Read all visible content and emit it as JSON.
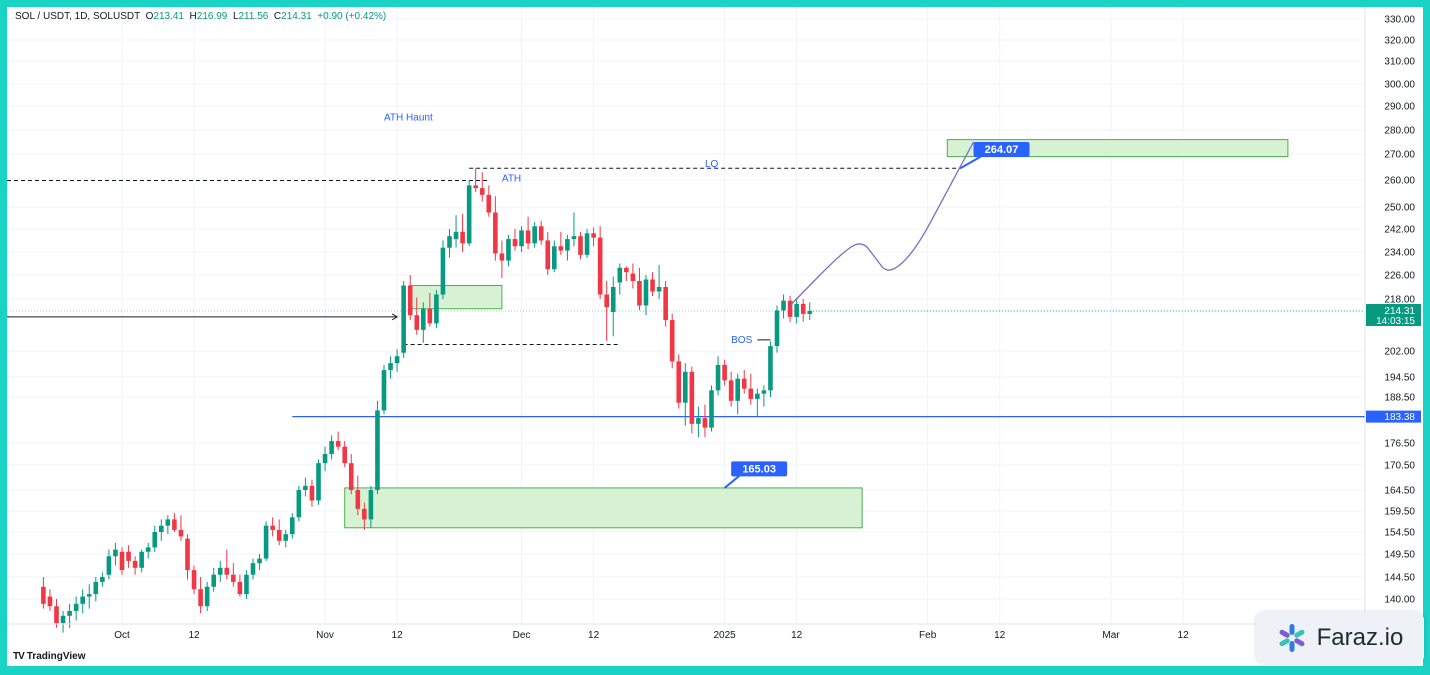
{
  "legend": {
    "symbol": "SOL / USDT, 1D, SOLUSDT",
    "o_label": "O",
    "o": "213.41",
    "h_label": "H",
    "h": "216.99",
    "l_label": "L",
    "l": "211.56",
    "c_label": "C",
    "c": "214.31",
    "change": "+0.90 (+0.42%)"
  },
  "branding": {
    "tradingview": "TradingView",
    "watermark": "Faraz.io",
    "watermark_icon": "star-burst-icon"
  },
  "colors": {
    "up": "#089981",
    "down": "#f23645",
    "zone_fill": "#d7f2d2",
    "zone_border": "#4caf50",
    "accent": "#2962ff",
    "projection": "#7e6bc4"
  },
  "chart_data": {
    "type": "candlestick",
    "title": "SOL / USDT, 1D, SOLUSDT",
    "y_ticks": [
      "330.00",
      "320.00",
      "310.00",
      "300.00",
      "290.00",
      "280.00",
      "270.00",
      "260.00",
      "250.00",
      "242.00",
      "234.00",
      "226.00",
      "218.00",
      "202.00",
      "194.50",
      "188.50",
      "176.50",
      "170.50",
      "164.50",
      "159.50",
      "154.50",
      "149.50",
      "144.50",
      "140.00"
    ],
    "x_ticks": [
      "Oct",
      "12",
      "Nov",
      "12",
      "Dec",
      "12",
      "2025",
      "12",
      "Feb",
      "12",
      "Mar",
      "12"
    ],
    "last_price": "214.31",
    "countdown": "14:03:15",
    "support_level": "183.38",
    "annotations": {
      "ath_haunt": "ATH Haunt",
      "ath": "ATH",
      "lq": "LQ",
      "bos": "BOS",
      "target_upper": "264.07",
      "target_lower": "165.03"
    },
    "levels": {
      "ath": 264.5,
      "prev_high": 259.8,
      "bos": 204,
      "entry_arrow": 212.5
    },
    "zones": [
      {
        "name": "upper-target-zone",
        "from": "2025-02-04",
        "to": "2025-03-28",
        "low": 269,
        "high": 276
      },
      {
        "name": "mid-zone",
        "from": "2024-11-14",
        "to": "2024-11-28",
        "low": 215,
        "high": 222.5
      },
      {
        "name": "lower-demand-zone",
        "from": "2024-11-04",
        "to": "2025-01-22",
        "low": 155.5,
        "high": 165
      }
    ],
    "projection": [
      {
        "date": "2025-01-11",
        "price": 216
      },
      {
        "date": "2025-01-19",
        "price": 234
      },
      {
        "date": "2025-01-22",
        "price": 238
      },
      {
        "date": "2025-01-24",
        "price": 232
      },
      {
        "date": "2025-01-26",
        "price": 226
      },
      {
        "date": "2025-01-30",
        "price": 234
      },
      {
        "date": "2025-02-04",
        "price": 256
      },
      {
        "date": "2025-02-08",
        "price": 275
      }
    ],
    "candles": [
      {
        "date": "2024-09-19",
        "o": 142.5,
        "h": 144.5,
        "l": 138,
        "c": 139
      },
      {
        "date": "2024-09-20",
        "o": 140.5,
        "h": 142,
        "l": 137.5,
        "c": 138.5
      },
      {
        "date": "2024-09-21",
        "o": 138.5,
        "h": 140,
        "l": 134,
        "c": 135
      },
      {
        "date": "2024-09-22",
        "o": 135,
        "h": 137.5,
        "l": 133,
        "c": 136.5
      },
      {
        "date": "2024-09-23",
        "o": 136.5,
        "h": 139,
        "l": 134,
        "c": 137.5
      },
      {
        "date": "2024-09-24",
        "o": 137.5,
        "h": 140.5,
        "l": 135.5,
        "c": 139
      },
      {
        "date": "2024-09-25",
        "o": 139,
        "h": 142,
        "l": 137,
        "c": 140.5
      },
      {
        "date": "2024-09-26",
        "o": 140.5,
        "h": 143,
        "l": 138,
        "c": 141
      },
      {
        "date": "2024-09-27",
        "o": 141,
        "h": 144.5,
        "l": 139.5,
        "c": 143.5
      },
      {
        "date": "2024-09-28",
        "o": 143.5,
        "h": 145.5,
        "l": 142.5,
        "c": 144.5
      },
      {
        "date": "2024-09-29",
        "o": 145,
        "h": 150.5,
        "l": 144,
        "c": 149
      },
      {
        "date": "2024-09-30",
        "o": 149,
        "h": 152,
        "l": 147,
        "c": 150.5
      },
      {
        "date": "2024-10-01",
        "o": 150,
        "h": 151,
        "l": 145,
        "c": 146
      },
      {
        "date": "2024-10-02",
        "o": 150,
        "h": 151.5,
        "l": 146.5,
        "c": 148
      },
      {
        "date": "2024-10-03",
        "o": 148,
        "h": 149,
        "l": 145,
        "c": 146.5
      },
      {
        "date": "2024-10-04",
        "o": 146.5,
        "h": 150.5,
        "l": 145.5,
        "c": 150
      },
      {
        "date": "2024-10-05",
        "o": 150,
        "h": 152,
        "l": 148.5,
        "c": 151
      },
      {
        "date": "2024-10-06",
        "o": 151,
        "h": 156,
        "l": 150,
        "c": 154.5
      },
      {
        "date": "2024-10-07",
        "o": 154.5,
        "h": 157.5,
        "l": 152.5,
        "c": 156
      },
      {
        "date": "2024-10-08",
        "o": 156,
        "h": 158.5,
        "l": 154,
        "c": 157.5
      },
      {
        "date": "2024-10-09",
        "o": 157.5,
        "h": 159,
        "l": 154.5,
        "c": 155
      },
      {
        "date": "2024-10-10",
        "o": 155,
        "h": 158.5,
        "l": 152.5,
        "c": 153.5
      },
      {
        "date": "2024-10-11",
        "o": 153,
        "h": 154,
        "l": 144,
        "c": 146
      },
      {
        "date": "2024-10-12",
        "o": 146,
        "h": 147,
        "l": 141,
        "c": 142
      },
      {
        "date": "2024-10-13",
        "o": 142,
        "h": 144.5,
        "l": 137,
        "c": 138.5
      },
      {
        "date": "2024-10-14",
        "o": 138.5,
        "h": 143.5,
        "l": 137.5,
        "c": 142.5
      },
      {
        "date": "2024-10-15",
        "o": 142.5,
        "h": 146.5,
        "l": 141.5,
        "c": 145
      },
      {
        "date": "2024-10-16",
        "o": 145,
        "h": 148,
        "l": 143.5,
        "c": 146.5
      },
      {
        "date": "2024-10-17",
        "o": 146.5,
        "h": 150.5,
        "l": 144,
        "c": 145
      },
      {
        "date": "2024-10-18",
        "o": 145,
        "h": 147.5,
        "l": 142.5,
        "c": 143.5
      },
      {
        "date": "2024-10-19",
        "o": 143.5,
        "h": 145,
        "l": 140.5,
        "c": 141
      },
      {
        "date": "2024-10-20",
        "o": 141,
        "h": 146,
        "l": 140,
        "c": 145
      },
      {
        "date": "2024-10-21",
        "o": 145,
        "h": 148.5,
        "l": 144,
        "c": 147.5
      },
      {
        "date": "2024-10-22",
        "o": 147.5,
        "h": 149.5,
        "l": 146,
        "c": 148.5
      },
      {
        "date": "2024-10-23",
        "o": 148.5,
        "h": 157,
        "l": 148,
        "c": 156
      },
      {
        "date": "2024-10-24",
        "o": 156,
        "h": 158,
        "l": 153.5,
        "c": 155
      },
      {
        "date": "2024-10-25",
        "o": 155,
        "h": 157.5,
        "l": 151.5,
        "c": 152.5
      },
      {
        "date": "2024-10-26",
        "o": 152.5,
        "h": 155,
        "l": 151,
        "c": 154
      },
      {
        "date": "2024-10-27",
        "o": 154,
        "h": 159,
        "l": 153,
        "c": 158
      },
      {
        "date": "2024-10-28",
        "o": 158,
        "h": 165.5,
        "l": 157,
        "c": 164.5
      },
      {
        "date": "2024-10-29",
        "o": 164.5,
        "h": 167.5,
        "l": 163,
        "c": 165.5
      },
      {
        "date": "2024-10-30",
        "o": 165.5,
        "h": 167,
        "l": 160.5,
        "c": 162
      },
      {
        "date": "2024-10-31",
        "o": 162,
        "h": 172,
        "l": 161,
        "c": 171
      },
      {
        "date": "2024-11-01",
        "o": 171,
        "h": 175.5,
        "l": 169,
        "c": 173.5
      },
      {
        "date": "2024-11-02",
        "o": 173.5,
        "h": 178.5,
        "l": 172,
        "c": 177
      },
      {
        "date": "2024-11-03",
        "o": 177,
        "h": 179.5,
        "l": 174.5,
        "c": 175.5
      },
      {
        "date": "2024-11-04",
        "o": 175.5,
        "h": 177,
        "l": 170,
        "c": 171
      },
      {
        "date": "2024-11-05",
        "o": 171,
        "h": 173.5,
        "l": 163.5,
        "c": 164.5
      },
      {
        "date": "2024-11-06",
        "o": 164.5,
        "h": 168,
        "l": 158.5,
        "c": 160
      },
      {
        "date": "2024-11-07",
        "o": 160,
        "h": 161.5,
        "l": 155,
        "c": 157.5
      },
      {
        "date": "2024-11-08",
        "o": 157.5,
        "h": 165.5,
        "l": 155.5,
        "c": 164.5
      },
      {
        "date": "2024-11-09",
        "o": 164.5,
        "h": 187.5,
        "l": 163.5,
        "c": 185
      },
      {
        "date": "2024-11-10",
        "o": 185,
        "h": 198,
        "l": 184,
        "c": 196.5
      },
      {
        "date": "2024-11-11",
        "o": 196.5,
        "h": 200.5,
        "l": 194,
        "c": 198.5
      },
      {
        "date": "2024-11-12",
        "o": 198.5,
        "h": 202.5,
        "l": 196,
        "c": 200.5
      },
      {
        "date": "2024-11-13",
        "o": 201.5,
        "h": 224,
        "l": 200,
        "c": 222.5
      },
      {
        "date": "2024-11-14",
        "o": 222.5,
        "h": 226,
        "l": 211.5,
        "c": 213
      },
      {
        "date": "2024-11-15",
        "o": 213,
        "h": 218.5,
        "l": 207,
        "c": 208.5
      },
      {
        "date": "2024-11-16",
        "o": 208.5,
        "h": 217,
        "l": 204.5,
        "c": 215
      },
      {
        "date": "2024-11-17",
        "o": 215,
        "h": 220,
        "l": 209.5,
        "c": 210.5
      },
      {
        "date": "2024-11-18",
        "o": 210.5,
        "h": 221,
        "l": 209,
        "c": 219.5
      },
      {
        "date": "2024-11-19",
        "o": 219.5,
        "h": 238,
        "l": 218,
        "c": 235.5
      },
      {
        "date": "2024-11-20",
        "o": 235.5,
        "h": 242,
        "l": 232,
        "c": 239.5
      },
      {
        "date": "2024-11-21",
        "o": 238.5,
        "h": 247,
        "l": 235.5,
        "c": 241
      },
      {
        "date": "2024-11-22",
        "o": 241,
        "h": 247.5,
        "l": 234,
        "c": 237
      },
      {
        "date": "2024-11-23",
        "o": 237,
        "h": 260,
        "l": 236,
        "c": 258
      },
      {
        "date": "2024-11-24",
        "o": 258,
        "h": 264.5,
        "l": 255.5,
        "c": 257
      },
      {
        "date": "2024-11-25",
        "o": 257,
        "h": 263,
        "l": 252,
        "c": 254.5
      },
      {
        "date": "2024-11-26",
        "o": 254.5,
        "h": 258,
        "l": 246.5,
        "c": 248
      },
      {
        "date": "2024-11-27",
        "o": 248,
        "h": 254,
        "l": 231,
        "c": 233.5
      },
      {
        "date": "2024-11-28",
        "o": 233.5,
        "h": 238,
        "l": 225,
        "c": 231
      },
      {
        "date": "2024-11-29",
        "o": 231,
        "h": 240,
        "l": 229,
        "c": 238.5
      },
      {
        "date": "2024-11-30",
        "o": 238.5,
        "h": 242,
        "l": 234.5,
        "c": 236
      },
      {
        "date": "2024-12-01",
        "o": 236,
        "h": 243,
        "l": 234,
        "c": 241.5
      },
      {
        "date": "2024-12-02",
        "o": 241.5,
        "h": 246.5,
        "l": 235,
        "c": 237
      },
      {
        "date": "2024-12-03",
        "o": 237,
        "h": 244.5,
        "l": 235.5,
        "c": 243
      },
      {
        "date": "2024-12-04",
        "o": 243,
        "h": 245,
        "l": 236.5,
        "c": 238
      },
      {
        "date": "2024-12-05",
        "o": 238,
        "h": 241,
        "l": 226,
        "c": 228
      },
      {
        "date": "2024-12-06",
        "o": 228,
        "h": 238,
        "l": 227,
        "c": 236
      },
      {
        "date": "2024-12-07",
        "o": 236,
        "h": 241,
        "l": 233,
        "c": 234.5
      },
      {
        "date": "2024-12-08",
        "o": 234.5,
        "h": 240,
        "l": 231,
        "c": 238.5
      },
      {
        "date": "2024-12-09",
        "o": 238.5,
        "h": 248,
        "l": 236,
        "c": 239.5
      },
      {
        "date": "2024-12-10",
        "o": 239.5,
        "h": 241,
        "l": 231.5,
        "c": 233
      },
      {
        "date": "2024-12-11",
        "o": 233,
        "h": 242,
        "l": 232,
        "c": 240.5
      },
      {
        "date": "2024-12-12",
        "o": 240.5,
        "h": 242.5,
        "l": 236,
        "c": 239
      },
      {
        "date": "2024-12-13",
        "o": 239,
        "h": 243,
        "l": 218,
        "c": 219.5
      },
      {
        "date": "2024-12-14",
        "o": 219.5,
        "h": 224,
        "l": 205,
        "c": 215.5
      },
      {
        "date": "2024-12-15",
        "o": 214,
        "h": 225.5,
        "l": 206.5,
        "c": 222
      },
      {
        "date": "2024-12-16",
        "o": 223.5,
        "h": 230,
        "l": 219.5,
        "c": 228.5
      },
      {
        "date": "2024-12-17",
        "o": 228.5,
        "h": 229,
        "l": 224,
        "c": 227
      },
      {
        "date": "2024-12-18",
        "o": 226.5,
        "h": 230,
        "l": 221.5,
        "c": 224
      },
      {
        "date": "2024-12-19",
        "o": 224,
        "h": 228.5,
        "l": 214.5,
        "c": 216
      },
      {
        "date": "2024-12-20",
        "o": 216,
        "h": 226,
        "l": 213,
        "c": 224.5
      },
      {
        "date": "2024-12-21",
        "o": 224.5,
        "h": 227,
        "l": 219,
        "c": 220.5
      },
      {
        "date": "2024-12-22",
        "o": 220.5,
        "h": 229.5,
        "l": 218,
        "c": 222
      },
      {
        "date": "2024-12-23",
        "o": 222,
        "h": 224,
        "l": 209.5,
        "c": 211.5
      },
      {
        "date": "2024-12-24",
        "o": 211.5,
        "h": 213.5,
        "l": 197,
        "c": 199
      },
      {
        "date": "2024-12-25",
        "o": 199,
        "h": 201,
        "l": 185.5,
        "c": 187
      },
      {
        "date": "2024-12-26",
        "o": 187,
        "h": 198.5,
        "l": 181,
        "c": 196
      },
      {
        "date": "2024-12-27",
        "o": 196,
        "h": 197.5,
        "l": 179,
        "c": 181.5
      },
      {
        "date": "2024-12-28",
        "o": 181.5,
        "h": 186,
        "l": 178,
        "c": 183
      },
      {
        "date": "2024-12-29",
        "o": 183,
        "h": 186.5,
        "l": 178,
        "c": 180.5
      },
      {
        "date": "2024-12-30",
        "o": 180.5,
        "h": 192,
        "l": 179.5,
        "c": 190.5
      },
      {
        "date": "2024-12-31",
        "o": 190.5,
        "h": 200.5,
        "l": 189,
        "c": 198
      },
      {
        "date": "2025-01-01",
        "o": 198,
        "h": 199.5,
        "l": 192,
        "c": 193.5
      },
      {
        "date": "2025-01-02",
        "o": 193.5,
        "h": 196,
        "l": 186,
        "c": 187.5
      },
      {
        "date": "2025-01-03",
        "o": 187.5,
        "h": 195.5,
        "l": 184,
        "c": 194
      },
      {
        "date": "2025-01-04",
        "o": 194,
        "h": 196.5,
        "l": 189.5,
        "c": 191
      },
      {
        "date": "2025-01-05",
        "o": 191,
        "h": 195.5,
        "l": 186.5,
        "c": 188
      },
      {
        "date": "2025-01-06",
        "o": 188,
        "h": 191,
        "l": 183.5,
        "c": 189.5
      },
      {
        "date": "2025-01-07",
        "o": 189.5,
        "h": 192,
        "l": 186,
        "c": 190.5
      },
      {
        "date": "2025-01-08",
        "o": 190.5,
        "h": 205,
        "l": 188.5,
        "c": 203.5
      },
      {
        "date": "2025-01-09",
        "o": 203.5,
        "h": 216,
        "l": 201.5,
        "c": 214.5
      },
      {
        "date": "2025-01-10",
        "o": 214.5,
        "h": 219.5,
        "l": 212,
        "c": 217.5
      },
      {
        "date": "2025-01-11",
        "o": 217.5,
        "h": 219,
        "l": 211,
        "c": 212.5
      },
      {
        "date": "2025-01-12",
        "o": 212.5,
        "h": 218.5,
        "l": 210.5,
        "c": 216.5
      },
      {
        "date": "2025-01-13",
        "o": 216.5,
        "h": 218,
        "l": 211,
        "c": 213.41
      },
      {
        "date": "2025-01-14",
        "o": 213.41,
        "h": 216.99,
        "l": 211.56,
        "c": 214.31
      }
    ]
  }
}
